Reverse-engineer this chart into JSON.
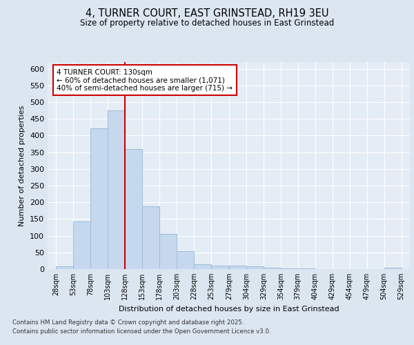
{
  "title_line1": "4, TURNER COURT, EAST GRINSTEAD, RH19 3EU",
  "title_line2": "Size of property relative to detached houses in East Grinstead",
  "xlabel": "Distribution of detached houses by size in East Grinstead",
  "ylabel": "Number of detached properties",
  "bar_color": "#c5d8ee",
  "bar_edge_color": "#a0bdd8",
  "background_color": "#dce6f1",
  "plot_bg_color": "#e4ecf5",
  "grid_color": "#ffffff",
  "vline_x": 128,
  "vline_color": "#cc0000",
  "annotation_text": "4 TURNER COURT: 130sqm\n← 60% of detached houses are smaller (1,071)\n40% of semi-detached houses are larger (715) →",
  "annotation_box_color": "#ffffff",
  "annotation_box_edge": "#cc0000",
  "bins": [
    28,
    53,
    78,
    103,
    128,
    153,
    178,
    203,
    228,
    253,
    279,
    304,
    329,
    354,
    379,
    404,
    429,
    454,
    479,
    504,
    529
  ],
  "counts": [
    9,
    143,
    422,
    475,
    360,
    188,
    106,
    54,
    14,
    11,
    10,
    8,
    4,
    2,
    3,
    0,
    0,
    0,
    0,
    4
  ],
  "tick_labels": [
    "28sqm",
    "53sqm",
    "78sqm",
    "103sqm",
    "128sqm",
    "153sqm",
    "178sqm",
    "203sqm",
    "228sqm",
    "253sqm",
    "279sqm",
    "304sqm",
    "329sqm",
    "354sqm",
    "379sqm",
    "404sqm",
    "429sqm",
    "454sqm",
    "479sqm",
    "504sqm",
    "529sqm"
  ],
  "ylim": [
    0,
    620
  ],
  "yticks": [
    0,
    50,
    100,
    150,
    200,
    250,
    300,
    350,
    400,
    450,
    500,
    550,
    600
  ],
  "footer_line1": "Contains HM Land Registry data © Crown copyright and database right 2025.",
  "footer_line2": "Contains public sector information licensed under the Open Government Licence v3.0."
}
